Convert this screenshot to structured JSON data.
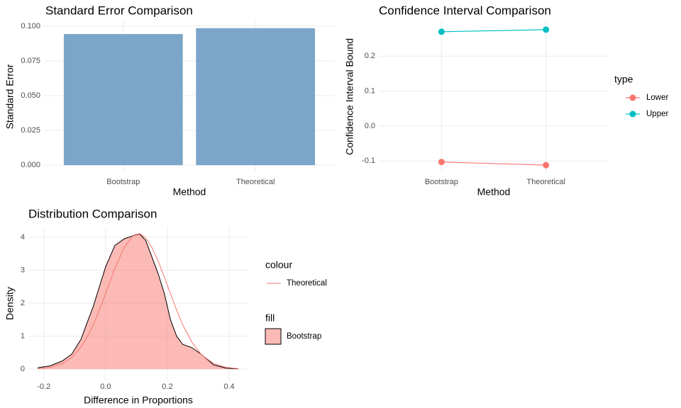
{
  "chart_data": [
    {
      "type": "bar",
      "title": "Standard Error Comparison",
      "x_label": "Method",
      "y_label": "Standard Error",
      "categories": [
        "Bootstrap",
        "Theoretical"
      ],
      "values": [
        0.0943,
        0.0985
      ],
      "color": "#7ba6c9",
      "ylim": [
        -0.005,
        0.1035
      ],
      "yticks": [
        {
          "value": 0,
          "label": "0.000"
        },
        {
          "value": 0.025,
          "label": "0.025"
        },
        {
          "value": 0.05,
          "label": "0.050"
        },
        {
          "value": 0.075,
          "label": "0.075"
        },
        {
          "value": 0.1,
          "label": "0.100"
        }
      ],
      "grid": true
    },
    {
      "type": "line",
      "title": "Confidence Interval Comparison",
      "x_label": "Method",
      "y_label": "Confidence Interval Bound",
      "legend_title": "type",
      "categories": [
        "Bootstrap",
        "Theoretical"
      ],
      "series": [
        {
          "name": "Lower",
          "color": "#f8766d",
          "values": [
            -0.103,
            -0.112
          ]
        },
        {
          "name": "Upper",
          "color": "#00bfc4",
          "values": [
            0.27,
            0.276
          ]
        }
      ],
      "ylim": [
        -0.132,
        0.3
      ],
      "yticks": [
        -0.1,
        {
          "value": 0,
          "label": "0.0"
        },
        0.1,
        0.2
      ],
      "grid": true
    },
    {
      "type": "density",
      "title": "Distribution Comparison",
      "x_label": "Difference in Proportions",
      "y_label": "Density",
      "colour_legend_title": "colour",
      "fill_legend_title": "fill",
      "x": [
        -0.22,
        -0.18,
        -0.14,
        -0.11,
        -0.08,
        -0.06,
        -0.04,
        -0.02,
        0,
        0.03,
        0.06,
        0.09,
        0.11,
        0.13,
        0.15,
        0.17,
        0.19,
        0.21,
        0.23,
        0.25,
        0.28,
        0.31,
        0.35,
        0.39,
        0.43
      ],
      "series": [
        {
          "name": "Bootstrap",
          "style": "area",
          "color": "#f8766d",
          "fill_opacity": 0.5,
          "outline": "#000000",
          "values": [
            0.04,
            0.1,
            0.25,
            0.45,
            0.9,
            1.4,
            1.9,
            2.5,
            3.1,
            3.75,
            3.95,
            4.05,
            4.1,
            3.9,
            3.4,
            2.9,
            2.3,
            1.5,
            1.0,
            0.75,
            0.65,
            0.45,
            0.13,
            0.03,
            0.01
          ]
        },
        {
          "name": "Theoretical",
          "style": "line",
          "color": "#f8766d",
          "values": [
            0.015,
            0.055,
            0.17,
            0.35,
            0.67,
            0.97,
            1.34,
            1.79,
            2.29,
            3.05,
            3.69,
            4.06,
            4.11,
            3.98,
            3.69,
            3.28,
            2.8,
            2.29,
            1.79,
            1.34,
            0.81,
            0.44,
            0.17,
            0.055,
            0.015
          ]
        }
      ],
      "xlim": [
        -0.25,
        0.462
      ],
      "ylim": [
        -0.34,
        4.32
      ],
      "xticks": [
        -0.2,
        {
          "value": 0,
          "label": "0.0"
        },
        0.2,
        0.4
      ],
      "yticks": [
        0,
        1,
        2,
        3,
        4
      ],
      "grid": true
    }
  ]
}
